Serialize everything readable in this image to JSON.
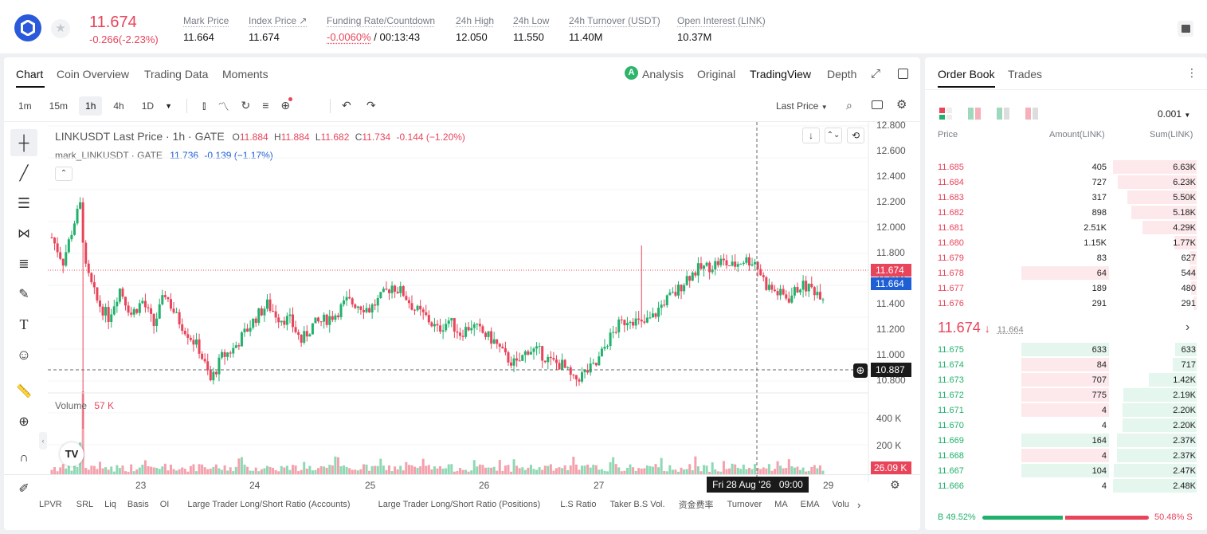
{
  "header": {
    "price": "11.674",
    "change": "-0.266(-2.23%)",
    "stats": [
      {
        "label": "Mark Price",
        "value": "11.664"
      },
      {
        "label": "Index Price ↗",
        "value": "11.674"
      },
      {
        "label": "Funding Rate/Countdown",
        "value_red": "-0.0060%",
        "value": " / 00:13:43"
      },
      {
        "label": "24h High",
        "value": "12.050"
      },
      {
        "label": "24h Low",
        "value": "11.550"
      },
      {
        "label": "24h Turnover (USDT)",
        "value": "11.40M"
      },
      {
        "label": "Open Interest (LINK)",
        "value": "10.37M"
      }
    ]
  },
  "chart_tabs": [
    "Chart",
    "Coin Overview",
    "Trading Data",
    "Moments"
  ],
  "view_tabs": [
    "Analysis",
    "Original",
    "TradingView",
    "Depth"
  ],
  "timeframes": [
    "1m",
    "15m",
    "1h",
    "4h",
    "1D"
  ],
  "price_type": "Last Price",
  "legend": {
    "title": "LINKUSDT Last Price · 1h · GATE",
    "o_label": "O",
    "o": "11.884",
    "h_label": "H",
    "h": "11.884",
    "l_label": "L",
    "l": "11.682",
    "c_label": "C",
    "c": "11.734",
    "chg": "-0.144 (−1.20%)",
    "mark_title": "mark_LINKUSDT · GATE",
    "mark_val": "11.736",
    "mark_chg": "-0.139 (−1.17%)",
    "volume_label": "Volume",
    "volume_val": "57 K"
  },
  "chart_data": {
    "type": "candlestick",
    "symbol": "LINKUSDT",
    "interval": "1h",
    "y_ticks": [
      "12.800",
      "12.600",
      "12.400",
      "12.200",
      "12.000",
      "11.800",
      "11.600",
      "11.400",
      "11.200",
      "11.000",
      "10.800"
    ],
    "ylim": [
      10.8,
      12.8
    ],
    "vol_ticks": [
      "400 K",
      "200 K"
    ],
    "x_ticks": [
      "23",
      "24",
      "25",
      "26",
      "27",
      "29"
    ],
    "last_price_tag": "11.674",
    "mark_price_tag": "11.664",
    "crosshair_price": "10.887",
    "crosshair_time": "Fri 28 Aug '26   09:00",
    "volume_tag": "26.09 K",
    "anchors": [
      [
        0,
        12.1
      ],
      [
        4,
        11.95
      ],
      [
        8,
        12.2
      ],
      [
        10,
        12.3
      ],
      [
        12,
        11.9
      ],
      [
        16,
        11.7
      ],
      [
        20,
        11.6
      ],
      [
        24,
        11.78
      ],
      [
        28,
        11.62
      ],
      [
        32,
        11.7
      ],
      [
        36,
        11.55
      ],
      [
        40,
        11.75
      ],
      [
        44,
        11.6
      ],
      [
        48,
        11.5
      ],
      [
        52,
        11.4
      ],
      [
        56,
        11.2
      ],
      [
        60,
        11.35
      ],
      [
        64,
        11.4
      ],
      [
        68,
        11.5
      ],
      [
        72,
        11.6
      ],
      [
        76,
        11.68
      ],
      [
        80,
        11.6
      ],
      [
        84,
        11.58
      ],
      [
        88,
        11.45
      ],
      [
        92,
        11.55
      ],
      [
        96,
        11.58
      ],
      [
        100,
        11.62
      ],
      [
        104,
        11.7
      ],
      [
        108,
        11.68
      ],
      [
        112,
        11.65
      ],
      [
        116,
        11.72
      ],
      [
        120,
        11.8
      ],
      [
        124,
        11.75
      ],
      [
        128,
        11.65
      ],
      [
        132,
        11.6
      ],
      [
        136,
        11.52
      ],
      [
        140,
        11.58
      ],
      [
        144,
        11.5
      ],
      [
        148,
        11.55
      ],
      [
        152,
        11.5
      ],
      [
        156,
        11.45
      ],
      [
        160,
        11.35
      ],
      [
        164,
        11.3
      ],
      [
        168,
        11.4
      ],
      [
        172,
        11.38
      ],
      [
        176,
        11.32
      ],
      [
        180,
        11.3
      ],
      [
        184,
        11.2
      ],
      [
        188,
        11.25
      ],
      [
        192,
        11.3
      ],
      [
        196,
        11.45
      ],
      [
        200,
        11.55
      ],
      [
        204,
        11.6
      ],
      [
        208,
        11.55
      ],
      [
        212,
        11.6
      ],
      [
        216,
        11.7
      ],
      [
        220,
        11.75
      ],
      [
        224,
        11.85
      ],
      [
        228,
        11.9
      ],
      [
        232,
        11.92
      ],
      [
        236,
        11.95
      ],
      [
        240,
        11.92
      ],
      [
        244,
        11.96
      ],
      [
        248,
        11.95
      ],
      [
        252,
        11.8
      ],
      [
        256,
        11.75
      ],
      [
        260,
        11.72
      ],
      [
        264,
        11.8
      ],
      [
        268,
        11.78
      ],
      [
        272,
        11.74
      ]
    ]
  },
  "indicators": [
    "LPVR",
    "SRL",
    "Liq",
    "Basis",
    "OI",
    "Large Trader Long/Short Ratio (Accounts)",
    "Large Trader Long/Short Ratio (Positions)",
    "L.S Ratio",
    "Taker B.S Vol.",
    "资金费率",
    "Turnover",
    "MA",
    "EMA",
    "Volu"
  ],
  "orderbook": {
    "tabs": [
      "Order Book",
      "Trades"
    ],
    "precision": "0.001",
    "headers": [
      "Price",
      "Amount(LINK)",
      "Sum(LINK)"
    ],
    "asks": [
      {
        "price": "11.685",
        "amount": "405",
        "sum": "6.63K",
        "depth": 1.0,
        "amt": 0.0
      },
      {
        "price": "11.684",
        "amount": "727",
        "sum": "6.23K",
        "depth": 0.94,
        "amt": 0.0
      },
      {
        "price": "11.683",
        "amount": "317",
        "sum": "5.50K",
        "depth": 0.83,
        "amt": 0.0
      },
      {
        "price": "11.682",
        "amount": "898",
        "sum": "5.18K",
        "depth": 0.78,
        "amt": 0.0
      },
      {
        "price": "11.681",
        "amount": "2.51K",
        "sum": "4.29K",
        "depth": 0.65,
        "amt": 0.0
      },
      {
        "price": "11.680",
        "amount": "1.15K",
        "sum": "1.77K",
        "depth": 0.27,
        "amt": 0.0
      },
      {
        "price": "11.679",
        "amount": "83",
        "sum": "627",
        "depth": 0.09,
        "amt": 0.0
      },
      {
        "price": "11.678",
        "amount": "64",
        "sum": "544",
        "depth": 0.08,
        "amt": 1.0
      },
      {
        "price": "11.677",
        "amount": "189",
        "sum": "480",
        "depth": 0.07,
        "amt": 0.0
      },
      {
        "price": "11.676",
        "amount": "291",
        "sum": "291",
        "depth": 0.04,
        "amt": 0.0
      }
    ],
    "last_price": "11.674",
    "arrow": "↓",
    "mark_price": "11.664",
    "bids": [
      {
        "price": "11.675",
        "amount": "633",
        "sum": "633",
        "depth": 0.26,
        "amt": 1.0,
        "amtc": "g"
      },
      {
        "price": "11.674",
        "amount": "84",
        "sum": "717",
        "depth": 0.29,
        "amt": 1.0,
        "amtc": "r"
      },
      {
        "price": "11.673",
        "amount": "707",
        "sum": "1.42K",
        "depth": 0.57,
        "amt": 1.0,
        "amtc": "r"
      },
      {
        "price": "11.672",
        "amount": "775",
        "sum": "2.19K",
        "depth": 0.88,
        "amt": 1.0,
        "amtc": "r"
      },
      {
        "price": "11.671",
        "amount": "4",
        "sum": "2.20K",
        "depth": 0.89,
        "amt": 1.0,
        "amtc": "r"
      },
      {
        "price": "11.670",
        "amount": "4",
        "sum": "2.20K",
        "depth": 0.89,
        "amt": 0.0,
        "amtc": ""
      },
      {
        "price": "11.669",
        "amount": "164",
        "sum": "2.37K",
        "depth": 0.95,
        "amt": 1.0,
        "amtc": "g"
      },
      {
        "price": "11.668",
        "amount": "4",
        "sum": "2.37K",
        "depth": 0.95,
        "amt": 1.0,
        "amtc": "r"
      },
      {
        "price": "11.667",
        "amount": "104",
        "sum": "2.47K",
        "depth": 0.99,
        "amt": 1.0,
        "amtc": "g"
      },
      {
        "price": "11.666",
        "amount": "4",
        "sum": "2.48K",
        "depth": 1.0,
        "amt": 0.0,
        "amtc": ""
      }
    ],
    "ratio_b_label": "B",
    "ratio_b": "49.52%",
    "ratio_s": "50.48%",
    "ratio_s_label": "S",
    "buy_fraction": 0.4952
  },
  "colors": {
    "up": "#20b26c",
    "down": "#e8445a",
    "accent": "#1e5fd6",
    "brand": "#2a5ada"
  }
}
